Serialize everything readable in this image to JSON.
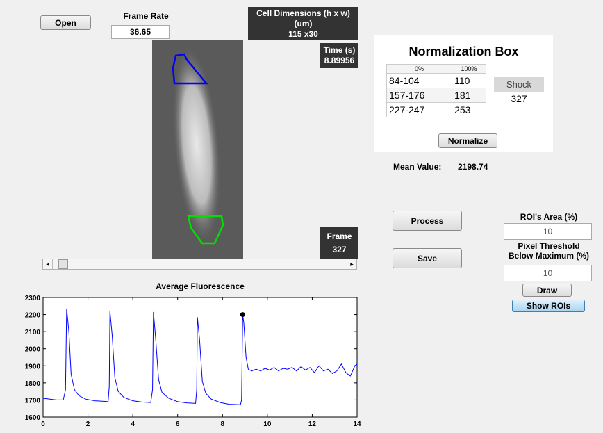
{
  "buttons": {
    "open": "Open",
    "process": "Process",
    "save": "Save",
    "normalize": "Normalize",
    "draw": "Draw",
    "show_rois": "Show ROIs"
  },
  "frame_rate": {
    "label": "Frame Rate",
    "value": "36.65"
  },
  "cell_dimensions": {
    "label": [
      "Cell Dimensions (h x w)",
      "(um)"
    ],
    "value": "115 x30"
  },
  "time": {
    "label": "Time (s)",
    "value": "8.89956"
  },
  "frame": {
    "label": "Frame",
    "value": "327"
  },
  "normalization_box": {
    "title": "Normalization Box",
    "columns": [
      "0%",
      "100%"
    ],
    "rows": [
      [
        "84-104",
        "110"
      ],
      [
        "157-176",
        "181"
      ],
      [
        "227-247",
        "253"
      ]
    ],
    "shock_label": "Shock",
    "shock_value": "327"
  },
  "mean_value": {
    "label": "Mean Value:",
    "value": "2198.74"
  },
  "roi_area": {
    "label": "ROI's Area (%)",
    "value": "10"
  },
  "pixel_threshold": {
    "label": [
      "Pixel Threshold",
      "Below Maximum (%)"
    ],
    "value": "10"
  },
  "chart_data": {
    "type": "line",
    "title": "Average Fluorescence",
    "xlim": [
      0,
      14
    ],
    "ylim": [
      1600,
      2300
    ],
    "xticks": [
      0,
      2,
      4,
      6,
      8,
      10,
      12,
      14
    ],
    "yticks": [
      1600,
      1700,
      1800,
      1900,
      2000,
      2100,
      2200,
      2300
    ],
    "series": [
      {
        "color": "#0000ff",
        "x": [
          0,
          0.3,
          0.6,
          0.9,
          1.0,
          1.05,
          1.15,
          1.25,
          1.4,
          1.6,
          1.9,
          2.3,
          2.7,
          2.9,
          2.95,
          2.98,
          3.08,
          3.2,
          3.35,
          3.6,
          4.0,
          4.4,
          4.8,
          4.88,
          4.92,
          5.02,
          5.15,
          5.3,
          5.6,
          6.0,
          6.4,
          6.8,
          6.85,
          6.88,
          6.98,
          7.1,
          7.25,
          7.5,
          7.9,
          8.3,
          8.8,
          8.85,
          8.9,
          8.95,
          9.05,
          9.15,
          9.3,
          9.5,
          9.7,
          9.9,
          10.1,
          10.3,
          10.5,
          10.7,
          10.9,
          11.1,
          11.3,
          11.5,
          11.7,
          11.9,
          12.1,
          12.3,
          12.5,
          12.7,
          12.9,
          13.1,
          13.3,
          13.5,
          13.7,
          13.9,
          14.0
        ],
        "values": [
          1710,
          1705,
          1700,
          1700,
          1760,
          2235,
          2100,
          1850,
          1760,
          1725,
          1705,
          1695,
          1692,
          1690,
          1780,
          2220,
          2080,
          1830,
          1750,
          1715,
          1695,
          1688,
          1685,
          1760,
          2215,
          2060,
          1820,
          1745,
          1710,
          1690,
          1683,
          1680,
          1760,
          2185,
          2050,
          1810,
          1740,
          1705,
          1685,
          1675,
          1672,
          1700,
          2200,
          2150,
          1950,
          1880,
          1870,
          1880,
          1870,
          1885,
          1875,
          1890,
          1870,
          1885,
          1880,
          1890,
          1870,
          1895,
          1875,
          1890,
          1860,
          1900,
          1870,
          1880,
          1855,
          1870,
          1910,
          1860,
          1840,
          1900,
          1910
        ]
      }
    ],
    "highlight": {
      "x": 8.9,
      "y": 2200,
      "color": "#000000"
    }
  }
}
